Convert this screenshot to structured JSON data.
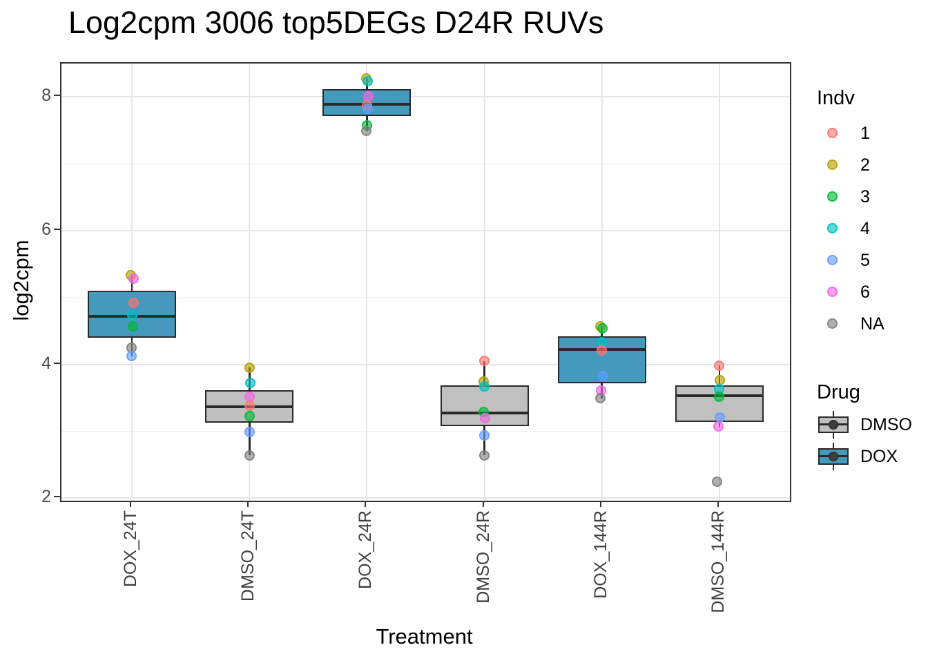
{
  "title": "Log2cpm 3006 top5DEGs D24R RUVs",
  "chart_data": {
    "type": "boxplot",
    "title": "Log2cpm 3006 top5DEGs D24R RUVs",
    "xlabel": "Treatment",
    "ylabel": "log2cpm",
    "ylim": [
      1.96,
      8.5
    ],
    "yticks": [
      2,
      4,
      6,
      8
    ],
    "yticks_minor": [
      3,
      5,
      7
    ],
    "grid": true,
    "legend_position": "right",
    "categories": [
      "DOX_24T",
      "DMSO_24T",
      "DOX_24R",
      "DMSO_24R",
      "DOX_144R",
      "DMSO_144R"
    ],
    "boxes": [
      {
        "category": "DOX_24T",
        "drug": "DOX",
        "whisker_low": 4.12,
        "q1": 4.4,
        "median": 4.72,
        "q3": 5.1,
        "whisker_high": 5.33,
        "points": [
          {
            "indv": "2",
            "value": 5.33,
            "dx": -2
          },
          {
            "indv": "6",
            "value": 5.28,
            "dx": 2
          },
          {
            "indv": "1",
            "value": 4.92,
            "dx": 2
          },
          {
            "indv": "4",
            "value": 4.73,
            "dx": 0
          },
          {
            "indv": "3",
            "value": 4.57,
            "dx": 1
          },
          {
            "indv": "NA",
            "value": 4.25,
            "dx": -1
          },
          {
            "indv": "5",
            "value": 4.12,
            "dx": -1
          }
        ]
      },
      {
        "category": "DMSO_24T",
        "drug": "DMSO",
        "whisker_low": 2.64,
        "q1": 3.13,
        "median": 3.37,
        "q3": 3.61,
        "whisker_high": 3.95,
        "points": [
          {
            "indv": "2",
            "value": 3.95,
            "dx": 0
          },
          {
            "indv": "4",
            "value": 3.72,
            "dx": 1
          },
          {
            "indv": "6",
            "value": 3.51,
            "dx": 0
          },
          {
            "indv": "1",
            "value": 3.38,
            "dx": 0
          },
          {
            "indv": "3",
            "value": 3.23,
            "dx": 0
          },
          {
            "indv": "5",
            "value": 2.99,
            "dx": 0
          },
          {
            "indv": "NA",
            "value": 2.64,
            "dx": 0
          }
        ]
      },
      {
        "category": "DOX_24R",
        "drug": "DOX",
        "whisker_low": 7.49,
        "q1": 7.71,
        "median": 7.89,
        "q3": 8.12,
        "whisker_high": 8.28,
        "points": [
          {
            "indv": "2",
            "value": 8.28,
            "dx": -1
          },
          {
            "indv": "4",
            "value": 8.24,
            "dx": 1
          },
          {
            "indv": "6",
            "value": 8.01,
            "dx": 2
          },
          {
            "indv": "1",
            "value": 7.88,
            "dx": 0
          },
          {
            "indv": "5",
            "value": 7.82,
            "dx": 1
          },
          {
            "indv": "3",
            "value": 7.58,
            "dx": 0
          },
          {
            "indv": "NA",
            "value": 7.49,
            "dx": -1
          }
        ]
      },
      {
        "category": "DMSO_24R",
        "drug": "DMSO",
        "whisker_low": 2.64,
        "q1": 3.08,
        "median": 3.27,
        "q3": 3.69,
        "whisker_high": 4.05,
        "points": [
          {
            "indv": "1",
            "value": 4.05,
            "dx": 0
          },
          {
            "indv": "2",
            "value": 3.74,
            "dx": -1
          },
          {
            "indv": "4",
            "value": 3.67,
            "dx": 0
          },
          {
            "indv": "3",
            "value": 3.29,
            "dx": -1
          },
          {
            "indv": "6",
            "value": 3.19,
            "dx": 1
          },
          {
            "indv": "5",
            "value": 2.94,
            "dx": 0
          },
          {
            "indv": "NA",
            "value": 2.64,
            "dx": 0
          }
        ]
      },
      {
        "category": "DOX_144R",
        "drug": "DOX",
        "whisker_low": 3.49,
        "q1": 3.72,
        "median": 4.22,
        "q3": 4.42,
        "whisker_high": 4.57,
        "points": [
          {
            "indv": "2",
            "value": 4.57,
            "dx": -2
          },
          {
            "indv": "3",
            "value": 4.54,
            "dx": 1
          },
          {
            "indv": "4",
            "value": 4.33,
            "dx": 0
          },
          {
            "indv": "1",
            "value": 4.21,
            "dx": 0
          },
          {
            "indv": "5",
            "value": 3.82,
            "dx": 1
          },
          {
            "indv": "6",
            "value": 3.61,
            "dx": -1
          },
          {
            "indv": "NA",
            "value": 3.49,
            "dx": -2
          }
        ]
      },
      {
        "category": "DMSO_144R",
        "drug": "DMSO",
        "whisker_low": 3.07,
        "q1": 3.14,
        "median": 3.53,
        "q3": 3.69,
        "whisker_high": 3.98,
        "points": [
          {
            "indv": "1",
            "value": 3.98,
            "dx": 0
          },
          {
            "indv": "2",
            "value": 3.76,
            "dx": 1
          },
          {
            "indv": "4",
            "value": 3.63,
            "dx": 0
          },
          {
            "indv": "3",
            "value": 3.52,
            "dx": 0
          },
          {
            "indv": "5",
            "value": 3.2,
            "dx": 1
          },
          {
            "indv": "6",
            "value": 3.07,
            "dx": -1
          },
          {
            "indv": "NA",
            "value": 2.24,
            "dx": -3
          }
        ]
      }
    ],
    "indv_colors": {
      "1": "#F8766D",
      "2": "#B79F00",
      "3": "#00BA38",
      "4": "#00BFC4",
      "5": "#619CFF",
      "6": "#F564E3",
      "NA": "#7F7F7F"
    },
    "drug_colors": {
      "DMSO": "#C0C0C0",
      "DOX": "#4499BC"
    },
    "legend": {
      "indv_title": "Indv",
      "indv_items": [
        "1",
        "2",
        "3",
        "4",
        "5",
        "6",
        "NA"
      ],
      "drug_title": "Drug",
      "drug_items": [
        "DMSO",
        "DOX"
      ]
    }
  }
}
